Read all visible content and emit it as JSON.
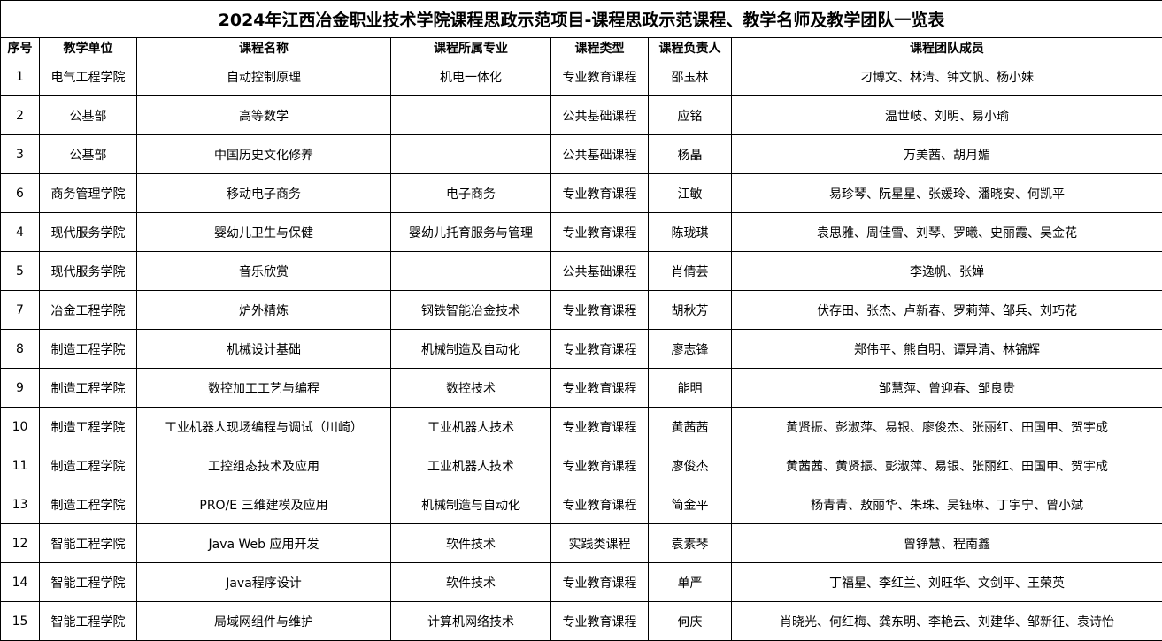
{
  "title": "2024年江西冶金职业技术学院课程思政示范项目-课程思政示范课程、教学名师及教学团队一览表",
  "columns": [
    "序号",
    "教学单位",
    "课程名称",
    "课程所属专业",
    "课程类型",
    "课程负责人",
    "课程团队成员"
  ],
  "rows": [
    [
      "1",
      "电气工程学院",
      "自动控制原理",
      "机电一体化",
      "专业教育课程",
      "邵玉林",
      "刁博文、林清、钟文帆、杨小妹"
    ],
    [
      "2",
      "公基部",
      "高等数学",
      "",
      "公共基础课程",
      "应铭",
      "温世岐、刘明、易小瑜"
    ],
    [
      "3",
      "公基部",
      "中国历史文化修养",
      "",
      "公共基础课程",
      "杨晶",
      "万美茜、胡月媚"
    ],
    [
      "6",
      "商务管理学院",
      "移动电子商务",
      "电子商务",
      "专业教育课程",
      "江敏",
      "易珍琴、阮星星、张媛玲、潘晓安、何凯平"
    ],
    [
      "4",
      "现代服务学院",
      "婴幼儿卫生与保健",
      "婴幼儿托育服务与管理",
      "专业教育课程",
      "陈珑琪",
      "袁思雅、周佳雪、刘琴、罗曦、史丽霞、吴金花"
    ],
    [
      "5",
      "现代服务学院",
      "音乐欣赏",
      "",
      "公共基础课程",
      "肖倩芸",
      "李逸帆、张婵"
    ],
    [
      "7",
      "冶金工程学院",
      "炉外精炼",
      "钢铁智能冶金技术",
      "专业教育课程",
      "胡秋芳",
      "伏存田、张杰、卢新春、罗莉萍、邹兵、刘巧花"
    ],
    [
      "8",
      "制造工程学院",
      "机械设计基础",
      "机械制造及自动化",
      "专业教育课程",
      "廖志锋",
      "郑伟平、熊自明、谭异清、林锦辉"
    ],
    [
      "9",
      "制造工程学院",
      "数控加工工艺与编程",
      "数控技术",
      "专业教育课程",
      "能明",
      "邹慧萍、曾迎春、邹良贵"
    ],
    [
      "10",
      "制造工程学院",
      "工业机器人现场编程与调试（川崎）",
      "工业机器人技术",
      "专业教育课程",
      "黄茜茜",
      "黄贤振、彭淑萍、易银、廖俊杰、张丽红、田国甲、贺宇成"
    ],
    [
      "11",
      "制造工程学院",
      "工控组态技术及应用",
      "工业机器人技术",
      "专业教育课程",
      "廖俊杰",
      "黄茜茜、黄贤振、彭淑萍、易银、张丽红、田国甲、贺宇成"
    ],
    [
      "13",
      "制造工程学院",
      "PRO/E 三维建模及应用",
      "机械制造与自动化",
      "专业教育课程",
      "简金平",
      "杨青青、敖丽华、朱珠、吴钰琳、丁宇宁、曾小斌"
    ],
    [
      "12",
      "智能工程学院",
      "Java Web 应用开发",
      "软件技术",
      "实践类课程",
      "袁素琴",
      "曾铮慧、程南鑫"
    ],
    [
      "14",
      "智能工程学院",
      "Java程序设计",
      "软件技术",
      "专业教育课程",
      "单严",
      "丁福星、李红兰、刘旺华、文剑平、王荣英"
    ],
    [
      "15",
      "智能工程学院",
      "局域网组件与维护",
      "计算机网络技术",
      "专业教育课程",
      "何庆",
      "肖晓光、何红梅、龚东明、李艳云、刘建华、邹新征、袁诗怡"
    ]
  ]
}
